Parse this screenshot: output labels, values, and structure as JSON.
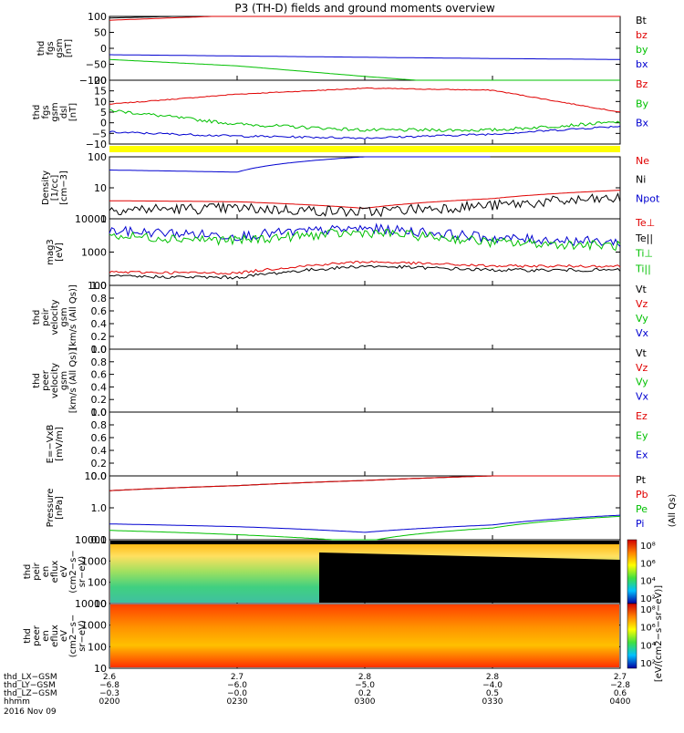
{
  "title": "P3 (TH-D) fields and ground moments overview",
  "panels": [
    {
      "id": "fgs-gsm",
      "ylabel": [
        "thd",
        "fgs",
        "gsm",
        "[nT]"
      ],
      "ticks": [
        "100",
        "50",
        "0",
        "−50",
        "−100"
      ],
      "legend": [
        {
          "t": "Bt",
          "c": "#000000"
        },
        {
          "t": "bz",
          "c": "#e00000"
        },
        {
          "t": "by",
          "c": "#00c000"
        },
        {
          "t": "bx",
          "c": "#0000d0"
        }
      ]
    },
    {
      "id": "fgs-gse",
      "ylabel": [
        "thd",
        "fgs",
        "gsm",
        "dsl",
        "[nT]"
      ],
      "ticks": [
        "20",
        "15",
        "10",
        "5",
        "0",
        "−5",
        "−10"
      ],
      "legend": [
        {
          "t": "Bz",
          "c": "#e00000"
        },
        {
          "t": "By",
          "c": "#00c000"
        },
        {
          "t": "Bx",
          "c": "#0000d0"
        }
      ]
    },
    {
      "id": "density",
      "ylabel": [
        "Density",
        "[1/cc]",
        "[cm−3]"
      ],
      "ticks": [
        "100",
        "10",
        "1"
      ],
      "legend": [
        {
          "t": "Ne",
          "c": "#e00000"
        },
        {
          "t": "Ni",
          "c": "#000000"
        },
        {
          "t": "Npot",
          "c": "#0000d0"
        }
      ]
    },
    {
      "id": "temp",
      "ylabel": [
        "mag3",
        "[eV]"
      ],
      "ticks": [
        "10000",
        "1000",
        "100"
      ],
      "legend": [
        {
          "t": "Te⊥",
          "c": "#e00000"
        },
        {
          "t": "Te||",
          "c": "#000000"
        },
        {
          "t": "Ti⊥",
          "c": "#00c000"
        },
        {
          "t": "Ti||",
          "c": "#00c000"
        }
      ]
    },
    {
      "id": "peir-vel",
      "ylabel": [
        "thd",
        "peir",
        "velocity",
        "gsm",
        "[km/s (All Qs)]"
      ],
      "ticks": [
        "1.0",
        "0.8",
        "0.6",
        "0.4",
        "0.2",
        "0.0"
      ],
      "legend": [
        {
          "t": "Vt",
          "c": "#000000"
        },
        {
          "t": "Vz",
          "c": "#e00000"
        },
        {
          "t": "Vy",
          "c": "#00c000"
        },
        {
          "t": "Vx",
          "c": "#0000d0"
        }
      ]
    },
    {
      "id": "peer-vel",
      "ylabel": [
        "thd",
        "peer",
        "velocity",
        "gsm",
        "[km/s (All Qs)]"
      ],
      "ticks": [
        "1.0",
        "0.8",
        "0.6",
        "0.4",
        "0.2",
        "0.0"
      ],
      "legend": [
        {
          "t": "Vt",
          "c": "#000000"
        },
        {
          "t": "Vz",
          "c": "#e00000"
        },
        {
          "t": "Vy",
          "c": "#00c000"
        },
        {
          "t": "Vx",
          "c": "#0000d0"
        }
      ]
    },
    {
      "id": "efield",
      "ylabel": [
        "E=−VxB",
        "[mV/m]"
      ],
      "ticks": [
        "1.0",
        "0.8",
        "0.6",
        "0.4",
        "0.2",
        "0.0"
      ],
      "legend": [
        {
          "t": "Ez",
          "c": "#e00000"
        },
        {
          "t": "Ey",
          "c": "#00c000"
        },
        {
          "t": "Ex",
          "c": "#0000d0"
        }
      ]
    },
    {
      "id": "pressure",
      "ylabel": [
        "Pressure",
        "[nPa]"
      ],
      "ticks": [
        "10.0",
        "1.0",
        "0.1"
      ],
      "legend": [
        {
          "t": "Pt",
          "c": "#000000"
        },
        {
          "t": "Pb",
          "c": "#e00000"
        },
        {
          "t": "Pe",
          "c": "#00c000"
        },
        {
          "t": "Pi",
          "c": "#0000d0"
        }
      ]
    },
    {
      "id": "peir-spec",
      "ylabel": [
        "thd",
        "peir",
        "en",
        "eflux",
        "eV",
        "(cm2−s−",
        "sr−eV)"
      ],
      "ticks": [
        "10000",
        "1000",
        "100",
        "10"
      ],
      "legend": []
    },
    {
      "id": "peer-spec",
      "ylabel": [
        "thd",
        "peer",
        "en",
        "eflux",
        "eV",
        "(cm2−s−",
        "sr−eV)"
      ],
      "ticks": [
        "10000",
        "1000",
        "100",
        "10"
      ],
      "legend": []
    }
  ],
  "side_labels": {
    "pressure": "(All Qs)",
    "spec": "[eV/(cm2−s−sr−eV)]",
    "peir_cb": "[eV/(cm2−s−sr−eV) (All Qs)]"
  },
  "colorbar": {
    "ticks": [
      "10⁸",
      "10⁶",
      "10⁴",
      "10²"
    ]
  },
  "axis": {
    "rows": [
      {
        "name": "thd_LX−GSM",
        "vals": [
          "2.6",
          "2.7",
          "2.8",
          "2.8",
          "2.7"
        ]
      },
      {
        "name": "thd_LY−GSM",
        "vals": [
          "−6.8",
          "−6.0",
          "−5.0",
          "−4.0",
          "−2.8"
        ]
      },
      {
        "name": "thd_LZ−GSM",
        "vals": [
          "−0.3",
          "−0.0",
          "0.2",
          "0.5",
          "0.6"
        ]
      },
      {
        "name": "hhmm",
        "vals": [
          "0200",
          "0230",
          "0300",
          "0330",
          "0400"
        ]
      }
    ],
    "date": "2016 Nov 09"
  },
  "chart_data": {
    "type": "line",
    "title": "P3 (TH-D) fields and ground moments overview",
    "x": [
      "0200",
      "0230",
      "0300",
      "0330",
      "0400"
    ],
    "series": [
      {
        "name": "Bt",
        "panel": 0,
        "values": [
          95,
          105,
          115,
          125,
          135
        ]
      },
      {
        "name": "bz",
        "panel": 0,
        "values": [
          88,
          103,
          115,
          128,
          140
        ]
      },
      {
        "name": "by",
        "panel": 0,
        "values": [
          -35,
          -55,
          -88,
          -118,
          -140
        ]
      },
      {
        "name": "bx",
        "panel": 0,
        "values": [
          -20,
          -24,
          -28,
          -32,
          -35
        ]
      },
      {
        "name": "Bz",
        "panel": 1,
        "values": [
          8,
          13,
          16,
          15,
          4
        ]
      },
      {
        "name": "By",
        "panel": 1,
        "values": [
          5,
          -2,
          -5,
          -5,
          -1
        ]
      },
      {
        "name": "Bx",
        "panel": 1,
        "values": [
          -6,
          -8,
          -9,
          -7,
          -3
        ]
      },
      {
        "name": "Ne",
        "panel": 2,
        "values": [
          2,
          1.8,
          0.9,
          2.5,
          6
        ]
      },
      {
        "name": "Ni",
        "panel": 2,
        "values": [
          0.8,
          0.9,
          0.6,
          1.2,
          2.5
        ]
      },
      {
        "name": "Npot",
        "panel": 2,
        "values": [
          50,
          40,
          200,
          null,
          null
        ]
      },
      {
        "name": "Te⊥",
        "panel": 3,
        "values": [
          5000,
          3500,
          6000,
          3000,
          2200
        ]
      },
      {
        "name": "Ti||",
        "panel": 3,
        "values": [
          3500,
          2500,
          4500,
          2200,
          1700
        ]
      },
      {
        "name": "Te||",
        "panel": 3,
        "values": [
          190,
          175,
          400,
          300,
          300
        ]
      },
      {
        "name": "Ti⊥",
        "panel": 3,
        "values": [
          260,
          240,
          550,
          400,
          400
        ]
      },
      {
        "name": "Pt",
        "panel": 7,
        "values": [
          5,
          8,
          13,
          20,
          25
        ]
      },
      {
        "name": "Pb",
        "panel": 7,
        "values": [
          5,
          8,
          13,
          20,
          25
        ]
      },
      {
        "name": "Pe",
        "panel": 7,
        "values": [
          0.12,
          0.08,
          0.04,
          0.15,
          0.45
        ]
      },
      {
        "name": "Pi",
        "panel": 7,
        "values": [
          0.22,
          0.17,
          0.1,
          0.2,
          0.5
        ]
      }
    ],
    "ylog": [
      false,
      false,
      true,
      true,
      false,
      false,
      false,
      true
    ]
  }
}
